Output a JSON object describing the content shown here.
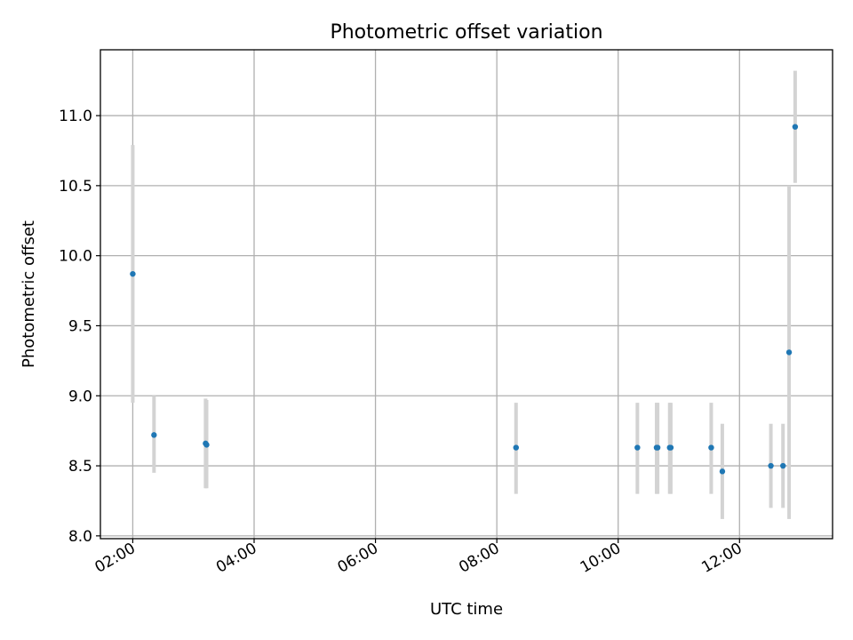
{
  "chart_data": {
    "type": "scatter",
    "title": "Photometric offset variation",
    "xlabel": "UTC time",
    "ylabel": "Photometric offset",
    "x_ticks": [
      "02:00",
      "04:00",
      "06:00",
      "08:00",
      "10:00",
      "12:00"
    ],
    "y_ticks": [
      "8.0",
      "8.5",
      "9.0",
      "9.5",
      "10.0",
      "10.5",
      "11.0"
    ],
    "xlim": [
      "01:28",
      "13:32"
    ],
    "ylim": [
      7.98,
      11.47
    ],
    "grid": true,
    "colors": {
      "point": "#1f77b4",
      "errorbar": "#d3d3d3"
    },
    "points": [
      {
        "x": "02:00",
        "y": 9.87,
        "y_low": 8.95,
        "y_high": 10.79
      },
      {
        "x": "02:21",
        "y": 8.72,
        "y_low": 8.45,
        "y_high": 9.0
      },
      {
        "x": "03:12",
        "y": 8.66,
        "y_low": 8.34,
        "y_high": 8.98
      },
      {
        "x": "03:13",
        "y": 8.65,
        "y_low": 8.34,
        "y_high": 8.97
      },
      {
        "x": "08:19",
        "y": 8.63,
        "y_low": 8.3,
        "y_high": 8.95
      },
      {
        "x": "10:19",
        "y": 8.63,
        "y_low": 8.3,
        "y_high": 8.95
      },
      {
        "x": "10:38",
        "y": 8.63,
        "y_low": 8.3,
        "y_high": 8.95
      },
      {
        "x": "10:39",
        "y": 8.63,
        "y_low": 8.3,
        "y_high": 8.95
      },
      {
        "x": "10:51",
        "y": 8.63,
        "y_low": 8.3,
        "y_high": 8.95
      },
      {
        "x": "10:52",
        "y": 8.63,
        "y_low": 8.3,
        "y_high": 8.95
      },
      {
        "x": "11:32",
        "y": 8.63,
        "y_low": 8.3,
        "y_high": 8.95
      },
      {
        "x": "11:43",
        "y": 8.46,
        "y_low": 8.12,
        "y_high": 8.8
      },
      {
        "x": "12:31",
        "y": 8.5,
        "y_low": 8.2,
        "y_high": 8.8
      },
      {
        "x": "12:43",
        "y": 8.5,
        "y_low": 8.2,
        "y_high": 8.8
      },
      {
        "x": "12:49",
        "y": 9.31,
        "y_low": 8.12,
        "y_high": 10.5
      },
      {
        "x": "12:55",
        "y": 10.92,
        "y_low": 10.52,
        "y_high": 11.32
      }
    ]
  }
}
